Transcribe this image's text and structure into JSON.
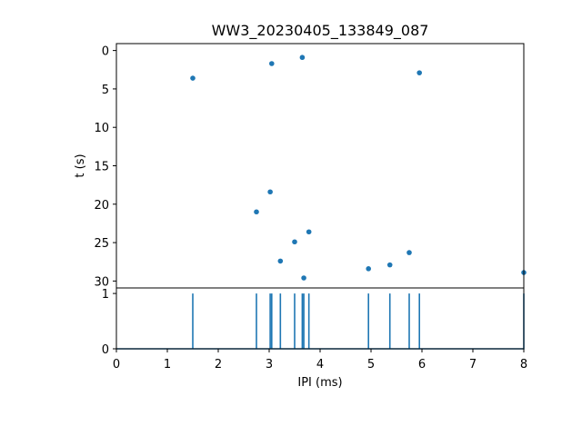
{
  "title": "WW3_20230405_133849_087",
  "colors": {
    "series": "#1f77b4",
    "axes": "#000000",
    "background": "#ffffff"
  },
  "chart_data": [
    {
      "type": "scatter",
      "title": "WW3_20230405_133849_087",
      "xlabel": "",
      "ylabel": "t (s)",
      "xlim": [
        0,
        8
      ],
      "ylim": [
        30.9,
        -0.9
      ],
      "y_inverted": true,
      "x_ticks_shown": false,
      "yticks": [
        0,
        5,
        10,
        15,
        20,
        25,
        30
      ],
      "ytick_labels": [
        "0",
        "5",
        "10",
        "15",
        "20",
        "25",
        "30"
      ],
      "grid": false,
      "points": [
        {
          "x": 1.5,
          "y": 3.6
        },
        {
          "x": 3.05,
          "y": 1.7
        },
        {
          "x": 3.65,
          "y": 0.9
        },
        {
          "x": 5.95,
          "y": 2.9
        },
        {
          "x": 3.02,
          "y": 18.4
        },
        {
          "x": 2.75,
          "y": 21.0
        },
        {
          "x": 3.78,
          "y": 23.6
        },
        {
          "x": 3.5,
          "y": 24.9
        },
        {
          "x": 3.22,
          "y": 27.4
        },
        {
          "x": 3.68,
          "y": 29.6
        },
        {
          "x": 4.95,
          "y": 28.4
        },
        {
          "x": 5.37,
          "y": 27.9
        },
        {
          "x": 5.75,
          "y": 26.3
        },
        {
          "x": 8.0,
          "y": 28.9
        }
      ]
    },
    {
      "type": "line",
      "xlabel": "IPI (ms)",
      "ylabel": "",
      "xlim": [
        0,
        8
      ],
      "ylim": [
        0,
        1.1
      ],
      "xticks": [
        0,
        1,
        2,
        3,
        4,
        5,
        6,
        7,
        8
      ],
      "xtick_labels": [
        "0",
        "1",
        "2",
        "3",
        "4",
        "5",
        "6",
        "7",
        "8"
      ],
      "yticks": [
        0,
        1
      ],
      "ytick_labels": [
        "0",
        "1"
      ],
      "grid": false,
      "spike_positions": [
        1.5,
        2.75,
        3.02,
        3.05,
        3.22,
        3.5,
        3.65,
        3.68,
        3.78,
        4.95,
        5.37,
        5.75,
        5.95,
        8.0
      ],
      "spike_height": 1
    }
  ]
}
